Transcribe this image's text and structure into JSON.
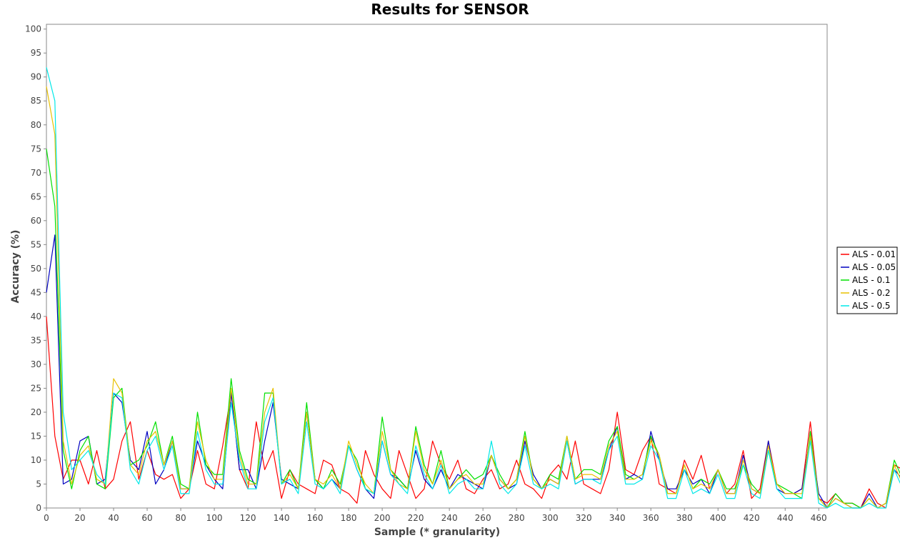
{
  "chart_data": {
    "type": "line",
    "title": "Results for SENSOR",
    "xlabel": "Sample (* granularity)",
    "ylabel": "Accuracy (%)",
    "xlim": [
      0,
      465
    ],
    "ylim": [
      0,
      101
    ],
    "x_ticks": [
      0,
      20,
      40,
      60,
      80,
      100,
      120,
      140,
      160,
      180,
      200,
      220,
      240,
      260,
      280,
      300,
      320,
      340,
      360,
      380,
      400,
      420,
      440,
      460
    ],
    "y_ticks": [
      0,
      5,
      10,
      15,
      20,
      25,
      30,
      35,
      40,
      45,
      50,
      55,
      60,
      65,
      70,
      75,
      80,
      85,
      90,
      95,
      100
    ],
    "grid": false,
    "legend_position": "right",
    "x_step": 5,
    "series": [
      {
        "name": "ALS - 0.01",
        "color": "#ff0000",
        "values": [
          40,
          15,
          6,
          10,
          10,
          5,
          12,
          4,
          6,
          14,
          18,
          6,
          12,
          7,
          6,
          7,
          2,
          4,
          12,
          5,
          4,
          13,
          24,
          8,
          4,
          18,
          8,
          12,
          2,
          8,
          5,
          4,
          3,
          10,
          9,
          4,
          3,
          1,
          12,
          7,
          4,
          2,
          12,
          7,
          2,
          4,
          14,
          9,
          6,
          10,
          4,
          3,
          6,
          8,
          4,
          5,
          10,
          5,
          4,
          2,
          7,
          9,
          6,
          14,
          5,
          4,
          3,
          8,
          20,
          8,
          7,
          12,
          15,
          5,
          4,
          3,
          10,
          6,
          11,
          4,
          8,
          3,
          5,
          12,
          2,
          4,
          14,
          5,
          3,
          3,
          4,
          18,
          2,
          1,
          3,
          1,
          1,
          0,
          4,
          1,
          0,
          9,
          8,
          7,
          3,
          1,
          12,
          6,
          7
        ]
      },
      {
        "name": "ALS - 0.05",
        "color": "#0000c0",
        "values": [
          45,
          57,
          5,
          6,
          14,
          15,
          5,
          6,
          24,
          22,
          10,
          8,
          16,
          5,
          8,
          14,
          4,
          4,
          14,
          9,
          6,
          4,
          24,
          8,
          8,
          4,
          14,
          22,
          6,
          5,
          4,
          20,
          6,
          4,
          6,
          4,
          13,
          8,
          4,
          2,
          14,
          7,
          6,
          4,
          12,
          6,
          4,
          8,
          4,
          7,
          6,
          5,
          4,
          11,
          6,
          4,
          5,
          14,
          7,
          4,
          6,
          5,
          14,
          5,
          6,
          6,
          6,
          12,
          17,
          6,
          7,
          6,
          16,
          10,
          4,
          4,
          8,
          5,
          6,
          3,
          8,
          3,
          3,
          11,
          4,
          3,
          14,
          4,
          3,
          3,
          4,
          15,
          3,
          0,
          2,
          1,
          0,
          0,
          3,
          0,
          1,
          8,
          6,
          4,
          2,
          1,
          10,
          7,
          7
        ]
      },
      {
        "name": "ALS - 0.1",
        "color": "#00e000",
        "values": [
          75,
          63,
          12,
          4,
          12,
          15,
          5,
          4,
          23,
          25,
          9,
          10,
          13,
          18,
          9,
          15,
          5,
          4,
          20,
          9,
          7,
          7,
          27,
          12,
          6,
          5,
          24,
          24,
          5,
          8,
          4,
          22,
          6,
          4,
          8,
          5,
          13,
          10,
          4,
          3,
          19,
          8,
          6,
          4,
          17,
          9,
          5,
          12,
          4,
          6,
          8,
          6,
          7,
          11,
          7,
          4,
          6,
          16,
          6,
          4,
          7,
          6,
          15,
          6,
          8,
          8,
          7,
          14,
          17,
          7,
          6,
          7,
          15,
          11,
          3,
          3,
          9,
          4,
          6,
          5,
          8,
          4,
          4,
          9,
          5,
          3,
          12,
          5,
          4,
          3,
          2,
          16,
          2,
          0,
          3,
          1,
          1,
          0,
          2,
          0,
          1,
          10,
          6,
          3,
          1,
          2,
          12,
          9,
          6
        ]
      },
      {
        "name": "ALS - 0.2",
        "color": "#e8c000",
        "values": [
          88,
          78,
          14,
          5,
          11,
          13,
          6,
          5,
          27,
          24,
          9,
          7,
          14,
          16,
          9,
          14,
          4,
          4,
          18,
          10,
          6,
          6,
          25,
          11,
          5,
          5,
          20,
          25,
          5,
          7,
          4,
          20,
          6,
          5,
          7,
          4,
          14,
          9,
          5,
          3,
          16,
          8,
          5,
          4,
          16,
          8,
          5,
          10,
          4,
          6,
          7,
          5,
          5,
          11,
          6,
          4,
          6,
          15,
          6,
          4,
          6,
          5,
          15,
          6,
          7,
          7,
          6,
          13,
          16,
          6,
          6,
          7,
          14,
          11,
          3,
          3,
          9,
          4,
          5,
          4,
          8,
          3,
          3,
          10,
          4,
          3,
          13,
          5,
          3,
          3,
          3,
          15,
          2,
          0,
          2,
          1,
          0,
          0,
          2,
          0,
          1,
          9,
          5,
          3,
          1,
          2,
          11,
          8,
          6
        ]
      },
      {
        "name": "ALS - 0.5",
        "color": "#00e8e8",
        "values": [
          92,
          85,
          20,
          8,
          10,
          12,
          7,
          5,
          24,
          23,
          8,
          5,
          12,
          15,
          8,
          13,
          3,
          3,
          16,
          8,
          5,
          5,
          22,
          10,
          4,
          4,
          18,
          23,
          5,
          6,
          3,
          18,
          5,
          4,
          6,
          3,
          13,
          8,
          4,
          3,
          14,
          7,
          5,
          3,
          13,
          7,
          4,
          9,
          3,
          5,
          6,
          4,
          4,
          14,
          5,
          3,
          5,
          13,
          5,
          4,
          5,
          4,
          14,
          5,
          6,
          6,
          5,
          12,
          15,
          5,
          5,
          6,
          13,
          10,
          2,
          2,
          8,
          3,
          4,
          3,
          7,
          2,
          2,
          9,
          3,
          2,
          12,
          4,
          2,
          2,
          2,
          14,
          1,
          0,
          1,
          0,
          0,
          0,
          1,
          0,
          0,
          8,
          4,
          2,
          0,
          1,
          13,
          7,
          5
        ]
      }
    ]
  }
}
